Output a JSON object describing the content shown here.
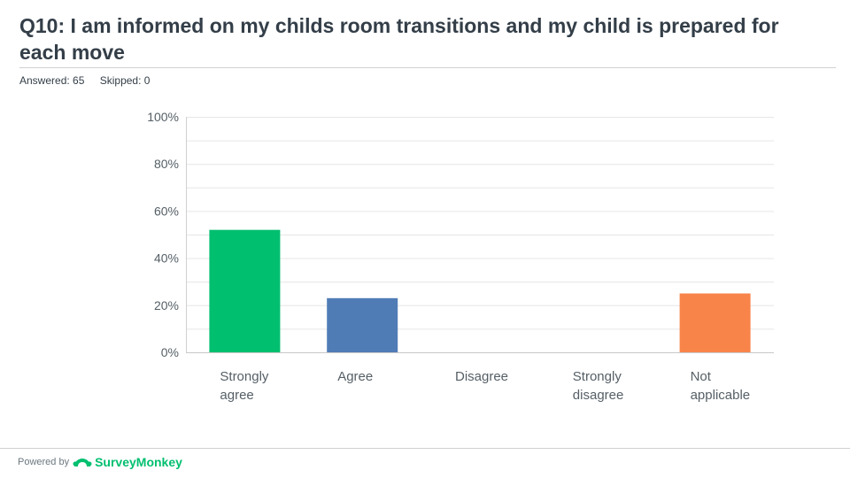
{
  "header": {
    "title": "Q10: I am informed on my childs room transitions and my child is prepared for each move",
    "answered": "Answered: 65",
    "skipped": "Skipped: 0"
  },
  "footer": {
    "powered_by": "Powered by",
    "brand": "SurveyMonkey"
  },
  "colors": {
    "strongly_agree": "#00bf6f",
    "agree": "#507cb6",
    "not_applicable": "#f9844a",
    "brand": "#00bf6f"
  },
  "chart_data": {
    "type": "bar",
    "categories": [
      [
        "Strongly",
        "agree"
      ],
      [
        "Agree"
      ],
      [
        "Disagree"
      ],
      [
        "Strongly",
        "disagree"
      ],
      [
        "Not",
        "applicable"
      ]
    ],
    "values": [
      52,
      23,
      0,
      0,
      25
    ],
    "bar_colors": [
      "#00bf6f",
      "#507cb6",
      "#7ab",
      "#999",
      "#f9844a"
    ],
    "ylim": [
      0,
      100
    ],
    "yticks": [
      "0%",
      "20%",
      "40%",
      "60%",
      "80%",
      "100%"
    ],
    "grid": true
  }
}
